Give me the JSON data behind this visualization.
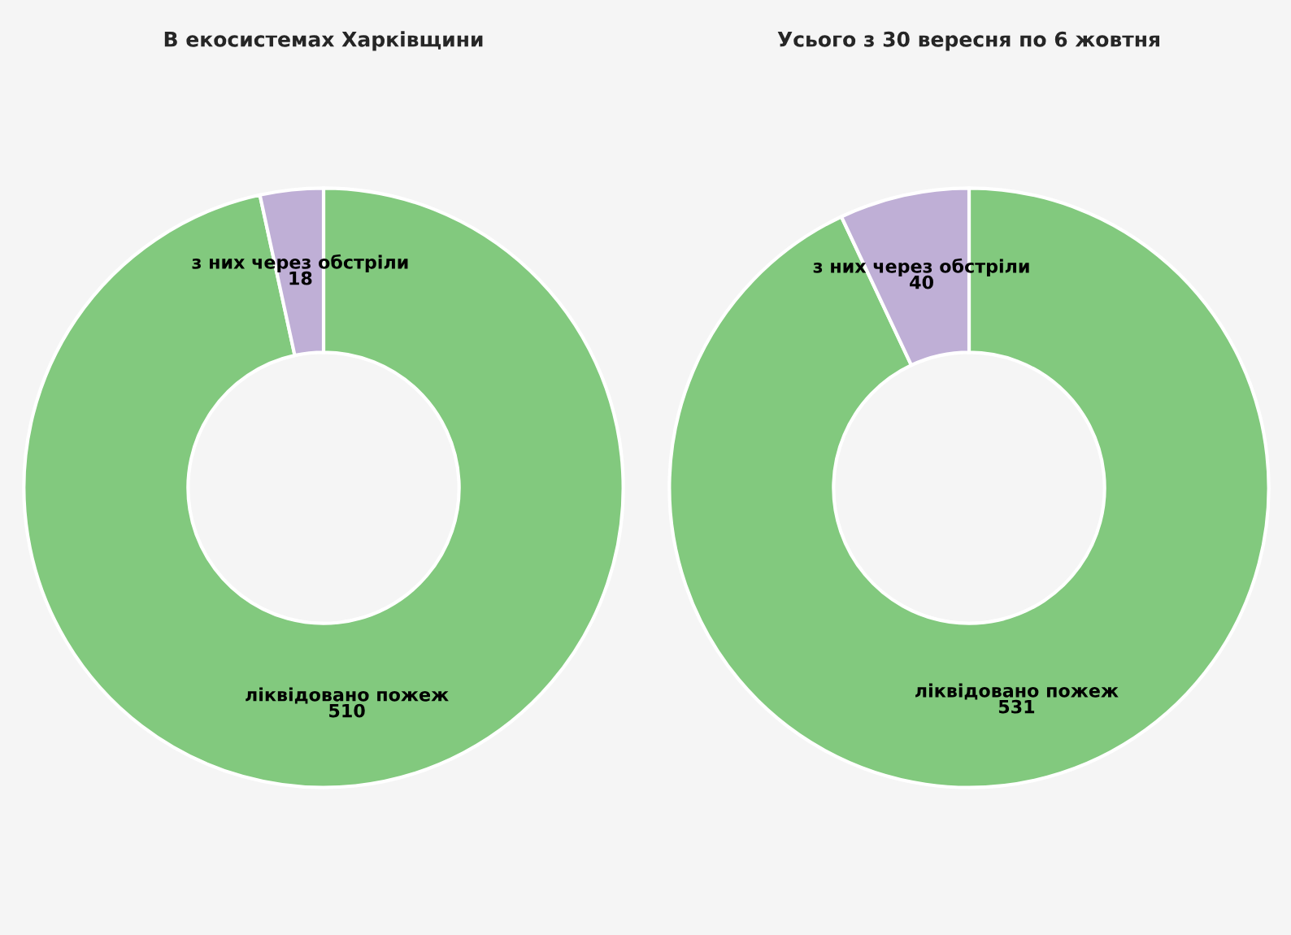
{
  "chart_data": [
    {
      "type": "donut",
      "title": "В екосистемах Харківщини",
      "categories": [
        "ліквідовано пожеж",
        "з них через обстріли"
      ],
      "values": [
        510,
        18
      ],
      "colors": [
        "#82c97e",
        "#bfafd6"
      ],
      "data_labels": true
    },
    {
      "type": "donut",
      "title": "Усього з 30 вересня по 6 жовтня",
      "categories": [
        "ліквідовано пожеж",
        "з них через обстріли"
      ],
      "values": [
        531,
        40
      ],
      "colors": [
        "#82c97e",
        "#bfafd6"
      ],
      "data_labels": true
    }
  ]
}
